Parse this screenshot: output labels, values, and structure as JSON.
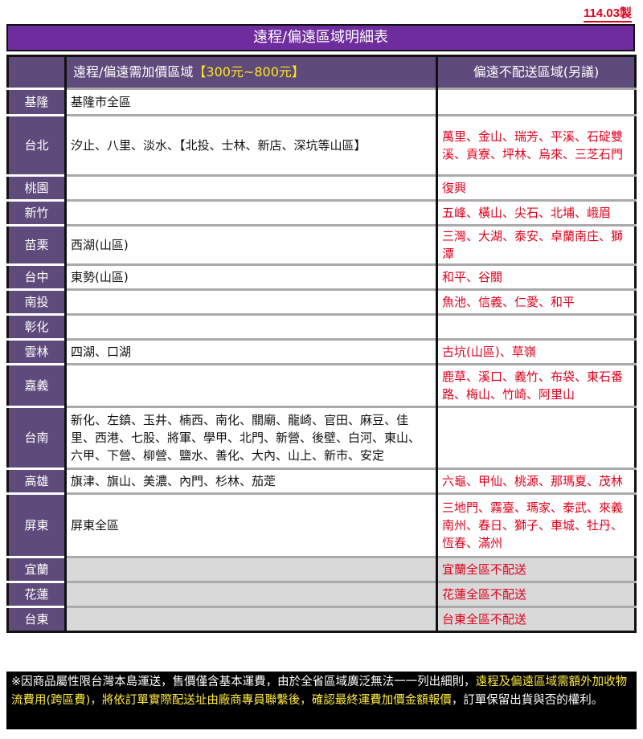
{
  "date_label": "114.03製",
  "title": "遠程/偏遠區域明細表",
  "header": {
    "col1_prefix": "遠程/偏遠需加價區域",
    "col1_price": "【300元~800元】",
    "col2": "偏遠不配送區域(另議)"
  },
  "rows": [
    {
      "region": "基隆",
      "surcharge": "基隆市全區",
      "no_delivery": ""
    },
    {
      "region": "台北",
      "surcharge": "汐止、八里、淡水、【北投、士林、新店、深坑等山區】",
      "no_delivery": "萬里、金山、瑞芳、平溪、石碇雙溪、貢寮、坪林、烏來、三芝石門"
    },
    {
      "region": "桃園",
      "surcharge": "",
      "no_delivery": "復興"
    },
    {
      "region": "新竹",
      "surcharge": "",
      "no_delivery": "五峰、橫山、尖石、北埔、峨眉"
    },
    {
      "region": "苗栗",
      "surcharge": "西湖(山區)",
      "no_delivery": "三灣、大湖、泰安、卓蘭南庄、獅潭"
    },
    {
      "region": "台中",
      "surcharge": "東勢(山區)",
      "no_delivery": "和平、谷關"
    },
    {
      "region": "南投",
      "surcharge": "",
      "no_delivery": "魚池、信義、仁愛、和平"
    },
    {
      "region": "彰化",
      "surcharge": "",
      "no_delivery": ""
    },
    {
      "region": "雲林",
      "surcharge": "四湖、口湖",
      "no_delivery": "古坑(山區)、草嶺"
    },
    {
      "region": "嘉義",
      "surcharge": "",
      "no_delivery": "鹿草、溪口、義竹、布袋、東石番路、梅山、竹崎、阿里山"
    },
    {
      "region": "台南",
      "surcharge": "新化、左鎮、玉井、楠西、南化、關廟、龍崎、官田、麻豆、佳里、西港、七股、將軍、學甲、北門、新營、後壁、白河、東山、六甲、下營、柳營、鹽水、善化、大內、山上、新市、安定",
      "no_delivery": ""
    },
    {
      "region": "高雄",
      "surcharge": "旗津、旗山、美濃、內門、杉林、茄萣",
      "no_delivery": "六龜、甲仙、桃源、那瑪夏、茂林"
    },
    {
      "region": "屏東",
      "surcharge": "屏東全區",
      "no_delivery": "三地門、霧臺、瑪家、泰武、來義南州、春日、獅子、車城、牡丹、恆春、滿州"
    },
    {
      "region": "宜蘭",
      "surcharge": "",
      "no_delivery": "宜蘭全區不配送"
    },
    {
      "region": "花蓮",
      "surcharge": "",
      "no_delivery": "花蓮全區不配送"
    },
    {
      "region": "台東",
      "surcharge": "",
      "no_delivery": "台東全區不配送"
    }
  ],
  "footer": {
    "text1": "※因商品屬性限台灣本島運送，售價僅含基本運費，由於全省區域廣泛無法一一列出細則，",
    "highlight": "遠程及偏遠區域需額外加收物流費用(跨區費)，將依訂單實際配送址由廠商專員聯繫後，確認最終運費加價金額報價",
    "text2": "，訂單保留出貨與否的權利。"
  }
}
